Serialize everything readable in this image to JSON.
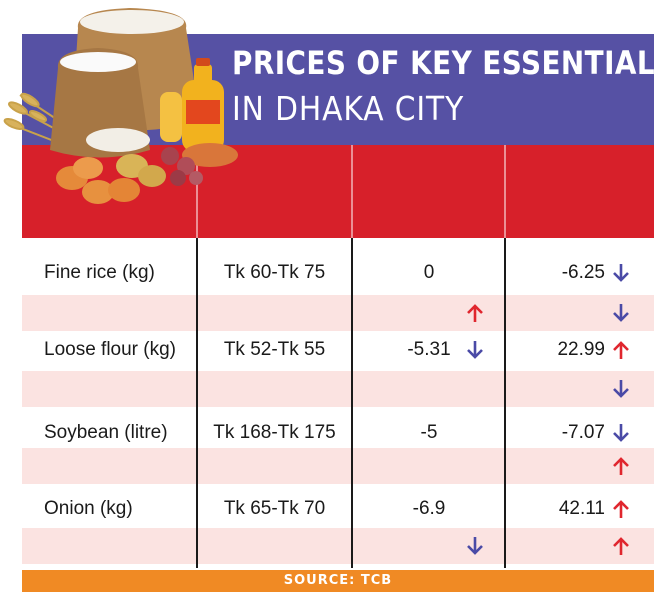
{
  "title": {
    "line1": "PRICES OF KEY ESSENTIALS",
    "line2": "IN DHAKA CITY"
  },
  "colors": {
    "title_bg": "#5651a4",
    "header_bg": "#d7202a",
    "stripe_bg": "#fbe3e1",
    "source_bg": "#f08a24",
    "arrow_up": "#e0262e",
    "arrow_down": "#4a4aa6"
  },
  "illustration": "rice-sacks-oil-bottle-eggs-onions-wheat",
  "chart_data": {
    "type": "table",
    "rows": [
      {
        "item": "Fine rice (kg)",
        "price": "Tk 60-Tk 75",
        "week": "0",
        "year": "-6.25",
        "arrows": {
          "week": "",
          "year": "down"
        },
        "stripe_arrows": {
          "week": "up",
          "year": "down"
        }
      },
      {
        "item": "Loose flour (kg)",
        "price": "Tk 52-Tk 55",
        "week": "-5.31",
        "year": "22.99",
        "arrows": {
          "week": "down",
          "year": "up"
        },
        "stripe_arrows": {
          "week": "",
          "year": "down"
        }
      },
      {
        "item": "Soybean (litre)",
        "price": "Tk 168-Tk 175",
        "week": "-5",
        "year": "-7.07",
        "arrows": {
          "week": "",
          "year": "down"
        },
        "stripe_arrows": {
          "week": "",
          "year": "up"
        }
      },
      {
        "item": "Onion (kg)",
        "price": "Tk 65-Tk 70",
        "week": "-6.9",
        "year": "42.11",
        "arrows": {
          "week": "",
          "year": "up"
        },
        "stripe_arrows": {
          "week": "down",
          "year": "up"
        }
      }
    ]
  },
  "source": "SOURCE: TCB"
}
